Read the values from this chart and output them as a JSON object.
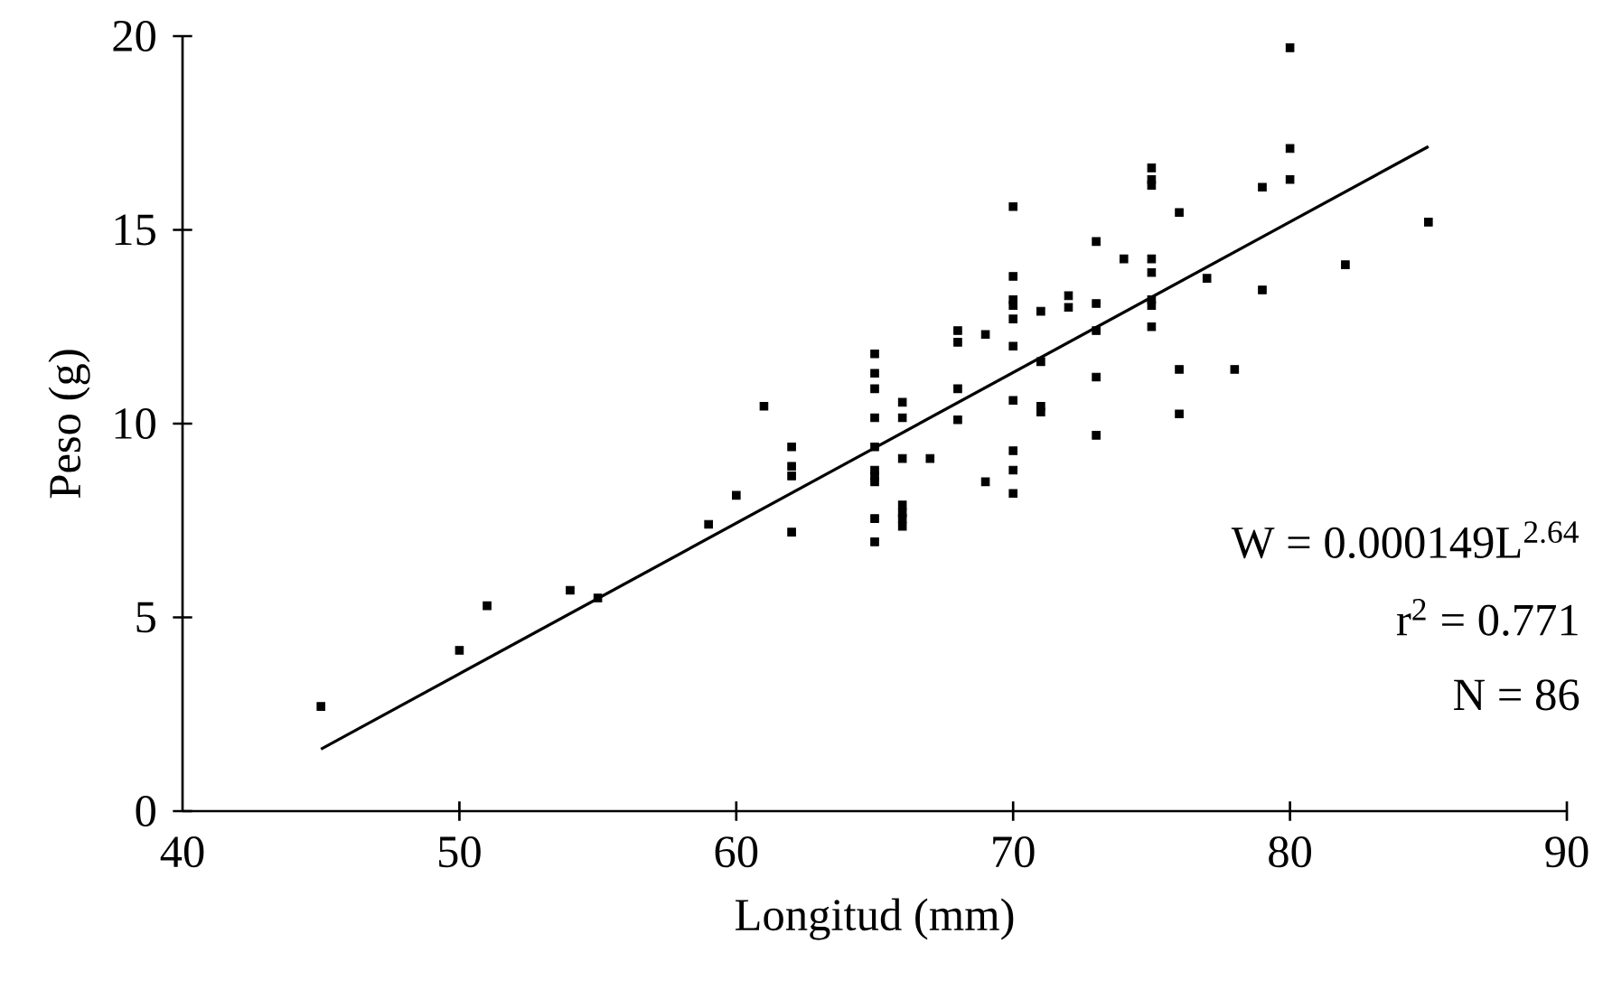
{
  "chart_data": {
    "type": "scatter",
    "xlabel": "Longitud (mm)",
    "ylabel": "Peso (g)",
    "xlim": [
      40,
      90
    ],
    "ylim": [
      0,
      20
    ],
    "xticks": [
      40,
      50,
      60,
      70,
      80,
      90
    ],
    "yticks": [
      0,
      5,
      10,
      15,
      20
    ],
    "marker": "square",
    "annotations": [
      "W = 0.000149L$^{2.64}$",
      "r$^{2}$ = 0.771",
      "N = 86"
    ],
    "series": [
      {
        "color": "#000000",
        "x": [
          45,
          50,
          51,
          54,
          55,
          59,
          60,
          61,
          62,
          62,
          62,
          62,
          65,
          65,
          65,
          65,
          65,
          65,
          65,
          65,
          65,
          65,
          66,
          66,
          66,
          66,
          66,
          66,
          66,
          67,
          68,
          68,
          68,
          68,
          69,
          69,
          70,
          70,
          70,
          70,
          70,
          70,
          70,
          70,
          70,
          70,
          71,
          71,
          71,
          71,
          72,
          72,
          73,
          73,
          73,
          73,
          73,
          74,
          75,
          75,
          75,
          75,
          75,
          75,
          75,
          75,
          76,
          76,
          76,
          77,
          78,
          79,
          79,
          80,
          80,
          80,
          82,
          85
        ],
        "values": [
          2.7,
          4.15,
          5.3,
          5.7,
          5.5,
          7.4,
          8.15,
          10.45,
          9.4,
          8.9,
          8.65,
          7.2,
          11.8,
          11.3,
          10.9,
          10.15,
          9.4,
          8.8,
          8.65,
          8.5,
          7.55,
          6.95,
          10.55,
          10.15,
          9.1,
          7.9,
          7.7,
          7.55,
          7.35,
          9.1,
          12.4,
          12.1,
          10.9,
          10.1,
          12.3,
          8.5,
          15.6,
          13.8,
          13.2,
          13.05,
          12.7,
          12.0,
          10.6,
          9.3,
          8.8,
          8.2,
          12.9,
          11.6,
          10.45,
          10.3,
          13.3,
          13.0,
          14.7,
          13.1,
          12.4,
          11.2,
          9.7,
          14.25,
          16.6,
          16.3,
          16.15,
          14.25,
          13.9,
          13.2,
          13.05,
          12.5,
          15.45,
          11.4,
          10.25,
          13.75,
          11.4,
          16.1,
          13.45,
          19.7,
          17.1,
          16.3,
          14.1,
          15.2
        ]
      },
      {
        "type": "line",
        "color": "#000000",
        "marker": "none",
        "x": [
          45,
          85
        ],
        "values": [
          1.6,
          17.15
        ]
      }
    ]
  }
}
